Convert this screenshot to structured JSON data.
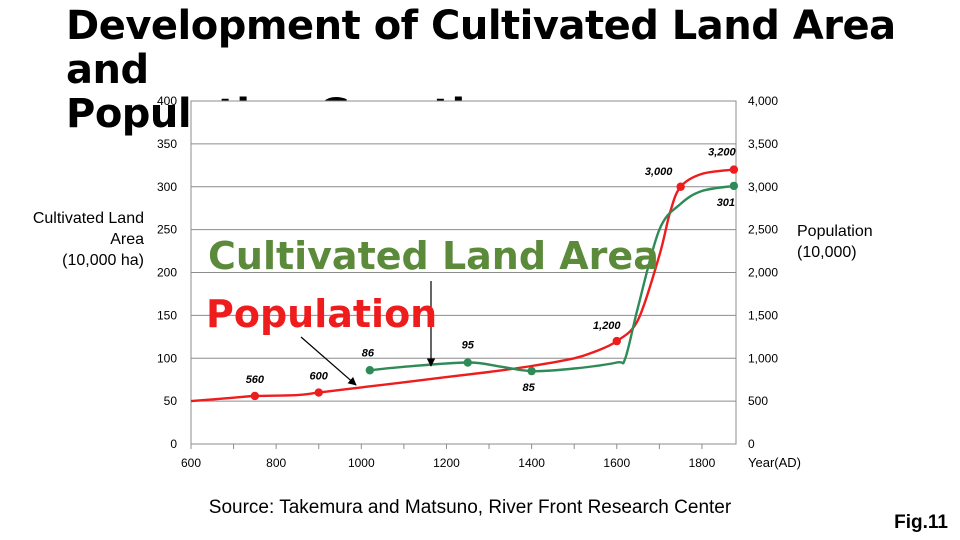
{
  "title_lines": [
    "Development of Cultivated Land Area and",
    "Population Growth"
  ],
  "source": "Source: Takemura and Matsuno, River Front Research Center",
  "figure_label": "Fig.11",
  "annotations": {
    "land": "Cultivated Land Area",
    "population": "Population"
  },
  "chart_data": {
    "type": "line",
    "xlabel": "Year(AD)",
    "ylabel_left_lines": [
      "Cultivated Land",
      "Area",
      "(10,000 ha)"
    ],
    "ylabel_right_lines": [
      "Population",
      "(10,000)"
    ],
    "xlim": [
      600,
      1880
    ],
    "ylim_left": [
      0,
      400
    ],
    "ylim_right": [
      0,
      4000
    ],
    "x_ticks": [
      600,
      800,
      1000,
      1200,
      1400,
      1600,
      1800
    ],
    "x_tick_labels": [
      "600",
      "800",
      "1000",
      "1200",
      "1400",
      "1600",
      "1800"
    ],
    "y_left_ticks": [
      0,
      50,
      100,
      150,
      200,
      250,
      300,
      350,
      400
    ],
    "y_left_tick_labels": [
      "0",
      "50",
      "100",
      "150",
      "200",
      "250",
      "300",
      "350",
      "400"
    ],
    "y_right_ticks": [
      0,
      500,
      1000,
      1500,
      2000,
      2500,
      3000,
      3500,
      4000
    ],
    "y_right_tick_labels": [
      "0",
      "500",
      "1,000",
      "1,500",
      "2,000",
      "2,500",
      "3,000",
      "3,500",
      "4,000"
    ],
    "grid": true,
    "series": [
      {
        "name": "Population",
        "axis": "right",
        "color": "#ee1c1c",
        "curve_x": [
          600,
          700,
          750,
          850,
          900,
          1000,
          1100,
          1200,
          1300,
          1400,
          1500,
          1550,
          1600,
          1650,
          1700,
          1725,
          1750,
          1800,
          1875
        ],
        "curve_y": [
          500,
          540,
          560,
          570,
          600,
          660,
          720,
          780,
          840,
          910,
          1000,
          1080,
          1200,
          1450,
          2200,
          2700,
          3000,
          3150,
          3200
        ],
        "points": [
          {
            "x": 750,
            "y": 560,
            "label": "560"
          },
          {
            "x": 900,
            "y": 600,
            "label": "600"
          },
          {
            "x": 1600,
            "y": 1200,
            "label": "1,200"
          },
          {
            "x": 1750,
            "y": 3000,
            "label": "3,000"
          },
          {
            "x": 1875,
            "y": 3200,
            "label": "3,200"
          }
        ]
      },
      {
        "name": "Cultivated Land Area",
        "axis": "left",
        "color": "#2e8b57",
        "curve_x": [
          1020,
          1100,
          1250,
          1330,
          1400,
          1500,
          1600,
          1620,
          1650,
          1700,
          1750,
          1800,
          1875
        ],
        "curve_y": [
          86,
          90,
          95,
          90,
          85,
          88,
          95,
          100,
          160,
          250,
          280,
          295,
          301
        ],
        "points": [
          {
            "x": 1020,
            "y": 86,
            "label": "86"
          },
          {
            "x": 1250,
            "y": 95,
            "label": "95"
          },
          {
            "x": 1400,
            "y": 85,
            "label": "85"
          },
          {
            "x": 1875,
            "y": 301,
            "label": "301"
          }
        ]
      }
    ]
  }
}
